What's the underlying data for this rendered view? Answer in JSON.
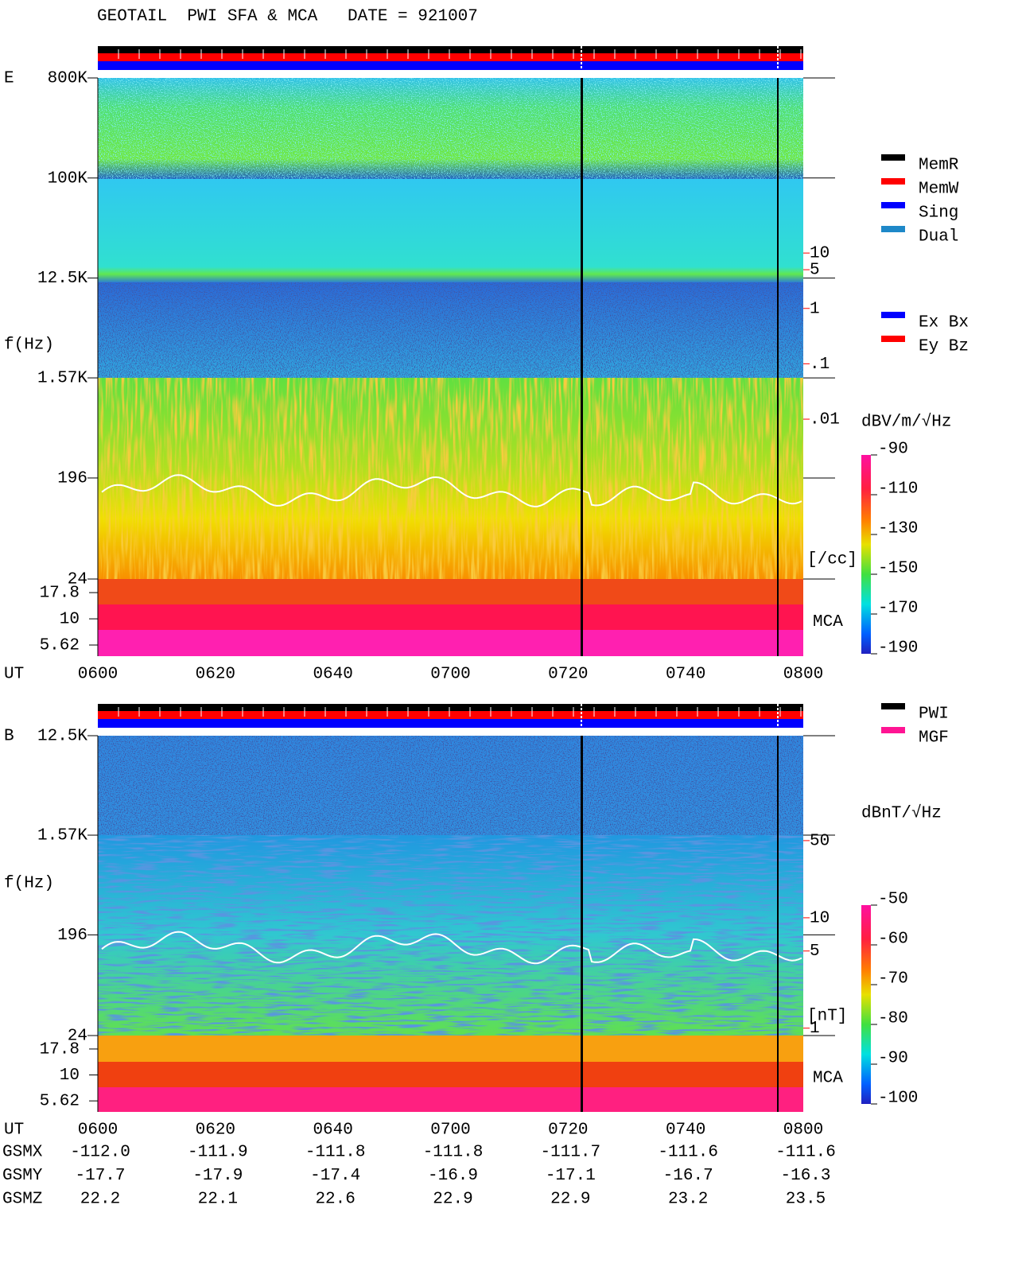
{
  "header": {
    "title": "GEOTAIL  PWI SFA & MCA   DATE = 921007"
  },
  "chart_data": [
    {
      "type": "spectrogram",
      "panel_label": "E",
      "y_label": "f(Hz)",
      "x_label": "UT",
      "categories": [
        "0600",
        "0620",
        "0640",
        "0700",
        "0720",
        "0740",
        "0800"
      ],
      "log_scale": true,
      "ylim": [
        24,
        800000
      ],
      "yticks": [
        {
          "value": 800000,
          "label": "800K"
        },
        {
          "value": 100000,
          "label": "100K"
        },
        {
          "value": 12500,
          "label": "12.5K"
        },
        {
          "value": 1570,
          "label": "1.57K"
        },
        196,
        24
      ],
      "mca_label": "MCA",
      "mca_lim": [
        4.4,
        24
      ],
      "mca_ticks": [
        17.8,
        10,
        5.62
      ],
      "y2_unit": "[/cc]",
      "y2lim": [
        1.3e-05,
        14500
      ],
      "y2ticks": [
        10,
        5,
        1,
        {
          "value": 0.1,
          "label": ".1"
        },
        {
          "value": 0.01,
          "label": ".01"
        }
      ],
      "y2_color": "#ff0000",
      "colorbar": {
        "label": "dBV/m/√Hz",
        "lim": [
          -90,
          -190
        ],
        "ticks": [
          -90,
          -110,
          -130,
          -150,
          -170,
          -190
        ]
      },
      "legend": [
        {
          "name": "MemR",
          "color": "#000000"
        },
        {
          "name": "MemW",
          "color": "#ff0000"
        },
        {
          "name": "Sing",
          "color": "#0000ff"
        },
        {
          "name": "Dual",
          "color": "#1e88c8"
        }
      ],
      "components": [
        {
          "name": "Ex Bx",
          "color": "#0000ff"
        },
        {
          "name": "Ey Bz",
          "color": "#ff0000"
        }
      ]
    },
    {
      "type": "spectrogram",
      "panel_label": "B",
      "y_label": "f(Hz)",
      "x_label": "UT",
      "categories": [
        "0600",
        "0620",
        "0640",
        "0700",
        "0720",
        "0740",
        "0800"
      ],
      "log_scale": true,
      "ylim": [
        24,
        12500
      ],
      "yticks": [
        {
          "value": 12500,
          "label": "12.5K"
        },
        {
          "value": 1570,
          "label": "1.57K"
        },
        196,
        24
      ],
      "mca_label": "MCA",
      "mca_lim": [
        4.4,
        24
      ],
      "mca_ticks": [
        17.8,
        10,
        5.62
      ],
      "y2_unit": "[nT]",
      "y2lim": [
        0.857,
        446
      ],
      "y2ticks": [
        50,
        10,
        5,
        1
      ],
      "y2_color": "#ff0000",
      "colorbar": {
        "label": "dBnT/√Hz",
        "lim": [
          -50,
          -100
        ],
        "ticks": [
          -50,
          -60,
          -70,
          -80,
          -90,
          -100
        ]
      },
      "legend": [
        {
          "name": "PWI",
          "color": "#000000"
        },
        {
          "name": "MGF",
          "color": "#ff1493"
        }
      ]
    }
  ],
  "orbit": {
    "rows": [
      {
        "label": "GSMX",
        "values": [
          "-112.0",
          "-111.9",
          "-111.8",
          "-111.8",
          "-111.7",
          "-111.6",
          "-111.6"
        ]
      },
      {
        "label": "GSMY",
        "values": [
          "-17.7",
          "-17.9",
          "-17.4",
          "-16.9",
          "-17.1",
          "-16.7",
          "-16.3"
        ]
      },
      {
        "label": "GSMZ",
        "values": [
          "22.2",
          "22.1",
          "22.6",
          "22.9",
          "22.9",
          "23.2",
          "23.5"
        ]
      }
    ]
  }
}
